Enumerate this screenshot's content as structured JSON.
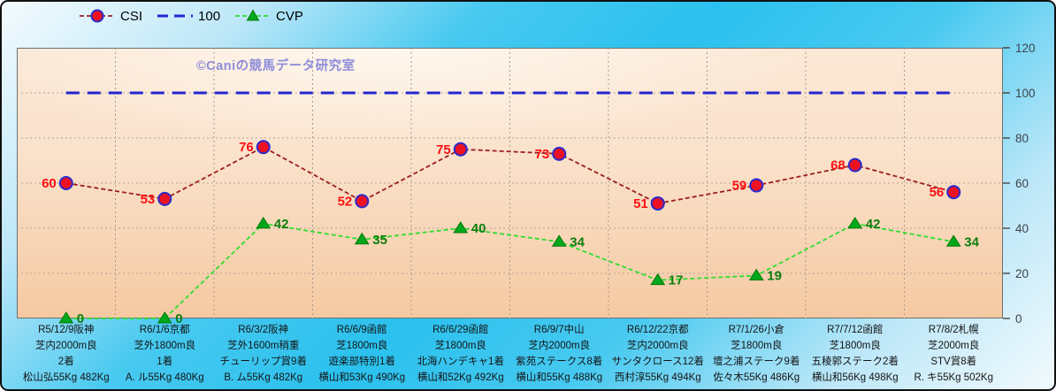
{
  "watermark": "©Caniの競馬データ研究室",
  "legend": {
    "items": [
      {
        "label": "CSI"
      },
      {
        "label": "100"
      },
      {
        "label": "CVP"
      }
    ]
  },
  "styles": {
    "csi": {
      "line": "#9B1E1E",
      "marker_fill": "#EC1222",
      "marker_edge": "#2B2BCC",
      "label": "#FF1010"
    },
    "hundred": {
      "line": "#2525CF"
    },
    "cvp": {
      "line": "#2FDD2F",
      "marker_fill": "#00A81C",
      "marker_edge": "#067806",
      "label": "#0E7D0E"
    },
    "axis_label_color": "#3F434B",
    "x_label_color": "#141414",
    "plot_bg_top": "#FBE8D6",
    "plot_bg_bottom": "#F5C9A2",
    "outer_bg_cyan": "#2BC1EE"
  },
  "chart_data": {
    "type": "line",
    "ylim": [
      0,
      120
    ],
    "yticks": [
      0,
      20,
      40,
      60,
      80,
      100,
      120
    ],
    "grid": true,
    "legend_position": "top",
    "categories": [
      [
        "R5/12/9阪神",
        "芝内2000m良",
        "2着",
        "松山弘55Kg 482Kg"
      ],
      [
        "R6/1/6京都",
        "芝外1800m良",
        "1着",
        "A. ル55Kg 480Kg"
      ],
      [
        "R6/3/2阪神",
        "芝外1600m稍重",
        "チューリップ賞9着",
        "B. ム55Kg 482Kg"
      ],
      [
        "R6/6/9函館",
        "芝1800m良",
        "遊楽部特別1着",
        "横山和53Kg 490Kg"
      ],
      [
        "R6/6/29函館",
        "芝1800m良",
        "北海ハンデキャ1着",
        "横山和52Kg 492Kg"
      ],
      [
        "R6/9/7中山",
        "芝内2000m良",
        "紫苑ステークス8着",
        "横山和55Kg 488Kg"
      ],
      [
        "R6/12/22京都",
        "芝内2000m良",
        "サンタクロース12着",
        "西村淳55Kg 494Kg"
      ],
      [
        "R7/1/26小倉",
        "芝1800m良",
        "壇之浦ステーク9着",
        "佐々木55Kg 486Kg"
      ],
      [
        "R7/7/12函館",
        "芝1800m良",
        "五稜郭ステーク2着",
        "横山和56Kg 498Kg"
      ],
      [
        "R7/8/2札幌",
        "芝2000m良",
        "STV賞8着",
        "R. キ55Kg 502Kg"
      ]
    ],
    "series": [
      {
        "name": "CSI",
        "marker": "circle",
        "values": [
          60,
          53,
          76,
          52,
          75,
          73,
          51,
          59,
          68,
          56
        ]
      },
      {
        "name": "100",
        "marker": "none",
        "values": [
          100,
          100,
          100,
          100,
          100,
          100,
          100,
          100,
          100,
          100
        ]
      },
      {
        "name": "CVP",
        "marker": "triangle",
        "values": [
          0,
          0,
          42,
          35,
          40,
          34,
          17,
          19,
          42,
          34
        ]
      }
    ]
  }
}
